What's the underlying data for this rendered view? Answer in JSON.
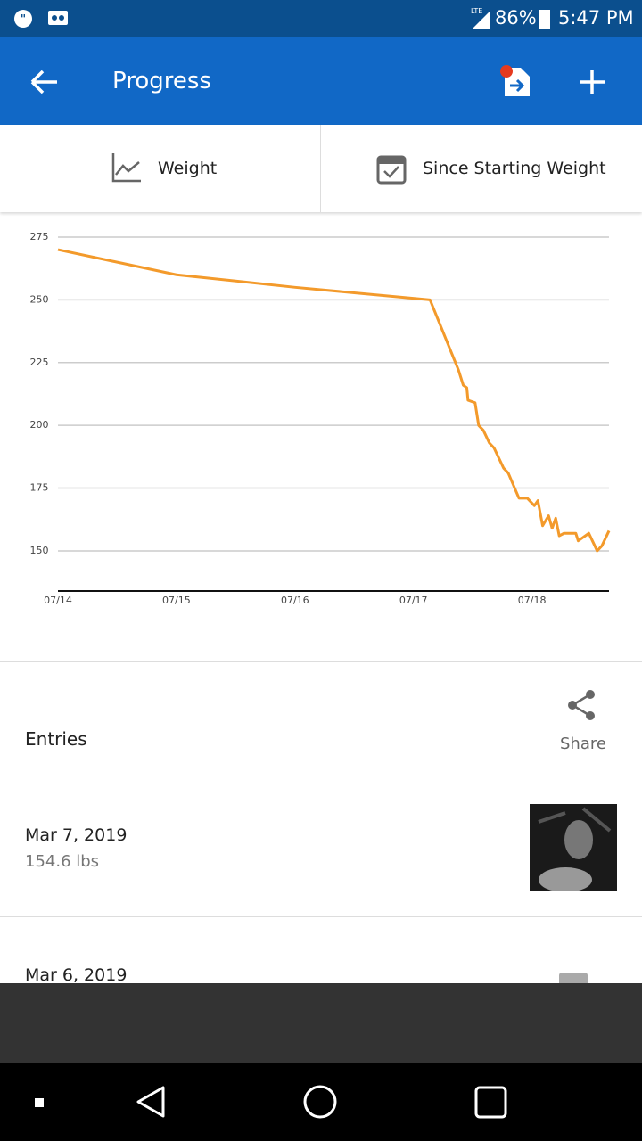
{
  "status_bar": {
    "network": "LTE",
    "battery": "86%",
    "time": "5:47 PM"
  },
  "app_bar": {
    "title": "Progress"
  },
  "tabs": [
    {
      "label": "Weight"
    },
    {
      "label": "Since Starting Weight"
    }
  ],
  "chart_data": {
    "type": "line",
    "x": [
      14,
      15,
      16,
      17.14,
      17.38,
      17.42,
      17.45,
      17.46,
      17.52,
      17.55,
      17.59,
      17.64,
      17.68,
      17.76,
      17.8,
      17.89,
      17.96,
      18.02,
      18.05,
      18.09,
      18.14,
      18.17,
      18.2,
      18.23,
      18.27,
      18.37,
      18.39,
      18.48,
      18.55,
      18.59,
      18.65
    ],
    "series": [
      {
        "color": "#f39a2b",
        "values": [
          270,
          260,
          255,
          250,
          222,
          216,
          215,
          210,
          209,
          200,
          198,
          193,
          191,
          183,
          181,
          171,
          171,
          168,
          170,
          160,
          164,
          159,
          163,
          156,
          157,
          157,
          154,
          157,
          150,
          152,
          158
        ]
      }
    ],
    "xlim": [
      14,
      18.65
    ],
    "xticks": [
      {
        "value": 14,
        "label": "07/14"
      },
      {
        "value": 15,
        "label": "07/15"
      },
      {
        "value": 16,
        "label": "07/16"
      },
      {
        "value": 17,
        "label": "07/17"
      },
      {
        "value": 18,
        "label": "07/18"
      }
    ],
    "ylim": [
      134,
      275
    ],
    "yticks": [
      150,
      175,
      200,
      225,
      250,
      275
    ],
    "grid": true
  },
  "entries": {
    "title": "Entries",
    "share": "Share",
    "items": [
      {
        "date": "Mar 7, 2019",
        "weight": "154.6 lbs"
      },
      {
        "date": "Mar 6, 2019"
      }
    ]
  }
}
